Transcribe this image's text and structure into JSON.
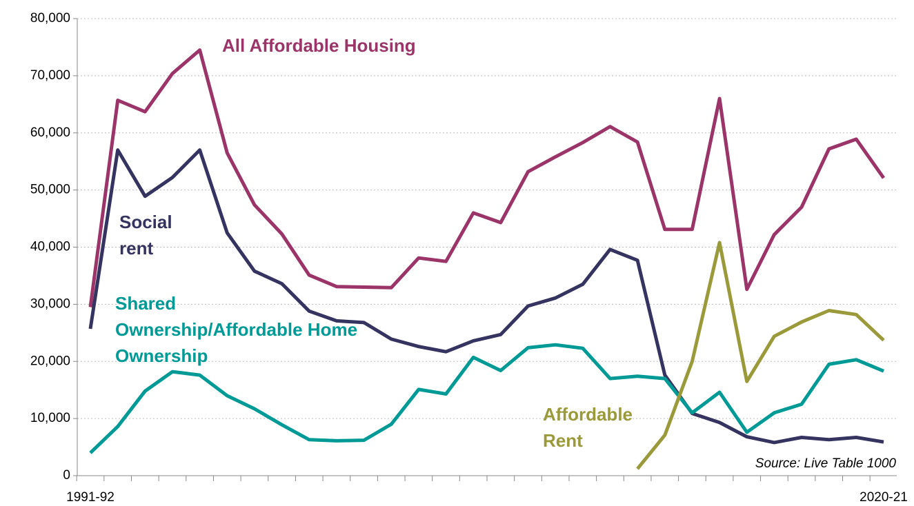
{
  "chart_data": {
    "type": "line",
    "categories": [
      "1991-92",
      null,
      null,
      null,
      null,
      null,
      null,
      null,
      null,
      null,
      null,
      null,
      null,
      null,
      null,
      null,
      null,
      null,
      null,
      null,
      null,
      null,
      null,
      null,
      null,
      null,
      null,
      null,
      null,
      "2020-21"
    ],
    "series": [
      {
        "name": "All Affordable Housing",
        "color": "#9b3468",
        "values": [
          29500,
          65700,
          63700,
          70400,
          74500,
          56500,
          47400,
          42300,
          35100,
          33100,
          33000,
          32900,
          38100,
          37500,
          46000,
          44300,
          53200,
          55800,
          58300,
          61100,
          58400,
          43100,
          43100,
          66000,
          32600,
          42200,
          47000,
          57200,
          58900,
          52100
        ]
      },
      {
        "name": "Social rent",
        "color": "#35335f",
        "values": [
          25700,
          57000,
          48900,
          52200,
          57000,
          42500,
          35800,
          33600,
          28800,
          27100,
          26800,
          23900,
          22600,
          21700,
          23600,
          24700,
          29700,
          31100,
          33500,
          39600,
          37700,
          17600,
          10900,
          9300,
          6800,
          5800,
          6700,
          6300,
          6700,
          5900
        ]
      },
      {
        "name": "Shared Ownership/Affordable Home Ownership",
        "color": "#009a96",
        "values": [
          4000,
          8600,
          14800,
          18200,
          17600,
          14000,
          11700,
          8900,
          6300,
          6100,
          6200,
          9000,
          15100,
          14300,
          20700,
          18400,
          22400,
          22900,
          22300,
          17000,
          17400,
          17000,
          11000,
          14600,
          7600,
          11000,
          12500,
          19500,
          20300,
          18300
        ]
      },
      {
        "name": "Affordable Rent",
        "color": "#9a9a3a",
        "values": [
          null,
          null,
          null,
          null,
          null,
          null,
          null,
          null,
          null,
          null,
          null,
          null,
          null,
          null,
          null,
          null,
          null,
          null,
          null,
          null,
          1200,
          7100,
          20000,
          40800,
          16500,
          24400,
          26900,
          28900,
          28200,
          23700
        ]
      }
    ],
    "ylim": [
      0,
      80000
    ],
    "yticks": [
      0,
      {
        "value": 10000,
        "label": "10,000"
      },
      {
        "value": 20000,
        "label": "20,000"
      },
      {
        "value": 30000,
        "label": "30,000"
      },
      {
        "value": 40000,
        "label": "40,000"
      },
      {
        "value": 50000,
        "label": "50,000"
      },
      {
        "value": 60000,
        "label": "60,000"
      },
      {
        "value": 70000,
        "label": "70,000"
      },
      {
        "value": 80000,
        "label": "80,000"
      }
    ],
    "grid": true,
    "source": "Source: Live Table 1000"
  }
}
